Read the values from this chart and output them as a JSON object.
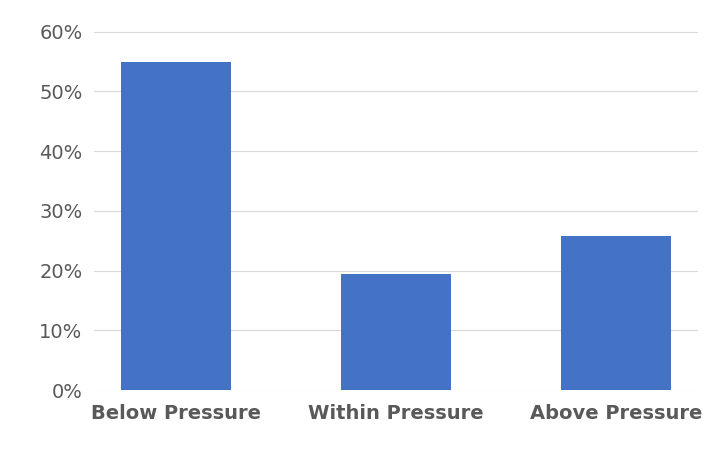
{
  "categories": [
    "Below Pressure",
    "Within Pressure",
    "Above Pressure"
  ],
  "values": [
    0.55,
    0.194,
    0.258
  ],
  "bar_color": "#4472C4",
  "ylim": [
    0,
    0.63
  ],
  "yticks": [
    0.0,
    0.1,
    0.2,
    0.3,
    0.4,
    0.5,
    0.6
  ],
  "background_color": "#ffffff",
  "grid_color": "#d9d9d9",
  "ylabel_fontsize": 14,
  "xlabel_fontsize": 14,
  "tick_fontsize": 14,
  "bar_width": 0.5,
  "tick_color": "#595959"
}
